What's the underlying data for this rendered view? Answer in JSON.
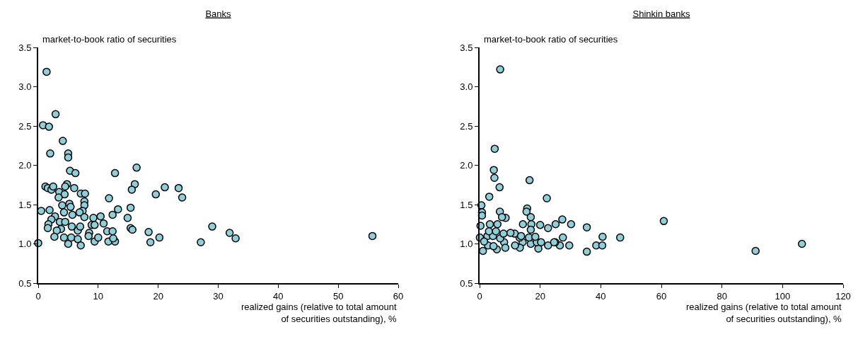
{
  "chart_data": [
    {
      "type": "scatter",
      "title": "Banks",
      "ylabel": "market-to-book ratio of securities",
      "xlabel": "realized gains (relative to total amount\nof securities outstanding), %",
      "color": "#8ecfdc",
      "marker": "circle",
      "xlim": [
        0,
        60
      ],
      "xticks": [
        0,
        10,
        20,
        30,
        40,
        50,
        60
      ],
      "ylim": [
        0.5,
        3.5
      ],
      "yticks": [
        {
          "value": 0.5,
          "label": "0.5"
        },
        {
          "value": 1,
          "label": "1.0"
        },
        {
          "value": 1.5,
          "label": "1.5"
        },
        {
          "value": 2,
          "label": "2.0"
        },
        {
          "value": 2.5,
          "label": "2.5"
        },
        {
          "value": 3,
          "label": "3.0"
        },
        {
          "value": 3.5,
          "label": "3.5"
        }
      ],
      "x": [
        0,
        0.5,
        0.8,
        1.4,
        1.8,
        2.9,
        2.0,
        4.1,
        5.0,
        5.0,
        5.3,
        6.2,
        1.2,
        1.6,
        2.2,
        2.5,
        4.8,
        4.5,
        6.0,
        3.5,
        4.4,
        7.1,
        7.8,
        3.4,
        7.7,
        7.7,
        4.0,
        5.2,
        5.4,
        11.8,
        1.9,
        4.3,
        7.4,
        6.9,
        5.7,
        2.8,
        2.2,
        7.7,
        9.2,
        10.4,
        13.3,
        12.4,
        15.4,
        14.9,
        1.7,
        1.6,
        3.6,
        4.5,
        3.8,
        3.1,
        5.6,
        6.6,
        7.0,
        8.5,
        8.9,
        9.4,
        10.9,
        11.5,
        12.4,
        15.4,
        15.7,
        2.7,
        4.3,
        5.0,
        5.5,
        6.6,
        7.1,
        8.4,
        9.4,
        10.0,
        11.7,
        12.8,
        12.5,
        16.4,
        12.8,
        16.1,
        15.6,
        21.1,
        19.6,
        18.4,
        18.7,
        20.2,
        23.4,
        24.0,
        29.0,
        27.1,
        31.9,
        32.9,
        55.7
      ],
      "values": [
        1.01,
        1.42,
        2.51,
        3.19,
        2.49,
        2.65,
        2.15,
        2.31,
        2.15,
        2.1,
        1.93,
        1.9,
        1.73,
        1.71,
        1.69,
        1.73,
        1.76,
        1.73,
        1.71,
        1.66,
        1.63,
        1.64,
        1.64,
        1.59,
        1.54,
        1.49,
        1.49,
        1.51,
        1.47,
        1.58,
        1.43,
        1.4,
        1.42,
        1.4,
        1.37,
        1.35,
        1.31,
        1.34,
        1.33,
        1.35,
        1.44,
        1.37,
        1.46,
        1.33,
        1.25,
        1.2,
        1.28,
        1.28,
        1.19,
        1.17,
        1.22,
        1.17,
        1.22,
        1.14,
        1.24,
        1.24,
        1.26,
        1.16,
        1.16,
        1.2,
        1.18,
        1.09,
        1.08,
        1.0,
        1.08,
        1.06,
        0.98,
        1.1,
        1.03,
        1.08,
        1.03,
        1.03,
        1.07,
        1.97,
        1.9,
        1.76,
        1.69,
        1.72,
        1.63,
        1.15,
        1.02,
        1.08,
        1.71,
        1.59,
        1.22,
        1.02,
        1.14,
        1.07,
        1.1
      ]
    },
    {
      "type": "scatter",
      "title": "Shinkin banks",
      "ylabel": "market-to-book ratio of securities",
      "xlabel": "realized gains (relative to total amount\nof securities outstanding), %",
      "color": "#8ecfdc",
      "marker": "circle",
      "xlim": [
        0,
        120
      ],
      "xticks": [
        0,
        20,
        40,
        60,
        80,
        100,
        120
      ],
      "ylim": [
        0.5,
        3.5
      ],
      "yticks": [
        {
          "value": 0.5,
          "label": "0.5"
        },
        {
          "value": 1,
          "label": "1.0"
        },
        {
          "value": 1.5,
          "label": "1.5"
        },
        {
          "value": 2,
          "label": "2.0"
        },
        {
          "value": 2.5,
          "label": "2.5"
        },
        {
          "value": 3,
          "label": "3.0"
        },
        {
          "value": 3.5,
          "label": "3.5"
        }
      ],
      "x": [
        6.8,
        5.0,
        4.7,
        4.9,
        6.6,
        3.2,
        16.5,
        22.2,
        0.6,
        0.8,
        0.8,
        6.7,
        15.7,
        15.5,
        16.9,
        8.6,
        7.4,
        0.3,
        3.4,
        5.9,
        14.3,
        17.1,
        20.0,
        22.6,
        25.1,
        27.3,
        30.2,
        35.4,
        40.6,
        38.5,
        40.5,
        35.4,
        29.6,
        27.5,
        26.5,
        25.0,
        22.6,
        19.4,
        16.9,
        16.9,
        14.2,
        13.2,
        11.6,
        8.1,
        5.7,
        1.1,
        2.8,
        0.1,
        2.6,
        4.4,
        6.8,
        7.9,
        10.2,
        13.7,
        16.3,
        18.9,
        13.3,
        11.7,
        8.5,
        4.6,
        1.5,
        3.1,
        5.4,
        18.4,
        20.3,
        24.6,
        46.4,
        60.8,
        91.1,
        106.4
      ],
      "values": [
        3.22,
        2.21,
        1.94,
        1.84,
        1.72,
        1.6,
        1.81,
        1.58,
        1.49,
        1.4,
        1.36,
        1.41,
        1.45,
        1.41,
        1.34,
        1.33,
        1.34,
        1.23,
        1.25,
        1.25,
        1.25,
        1.25,
        1.24,
        1.2,
        1.25,
        1.31,
        1.25,
        1.21,
        1.09,
        0.98,
        0.98,
        0.9,
        0.98,
        1.08,
        0.98,
        1.02,
        0.98,
        0.94,
        1.0,
        1.18,
        1.02,
        1.08,
        1.13,
        1.02,
        0.93,
        0.91,
        0.98,
        1.08,
        1.1,
        1.1,
        1.07,
        1.13,
        1.14,
        1.1,
        1.08,
        1.02,
        0.95,
        0.98,
        0.95,
        0.97,
        1.03,
        1.16,
        1.16,
        1.09,
        1.02,
        1.02,
        1.08,
        1.29,
        0.91,
        1.0
      ]
    }
  ]
}
